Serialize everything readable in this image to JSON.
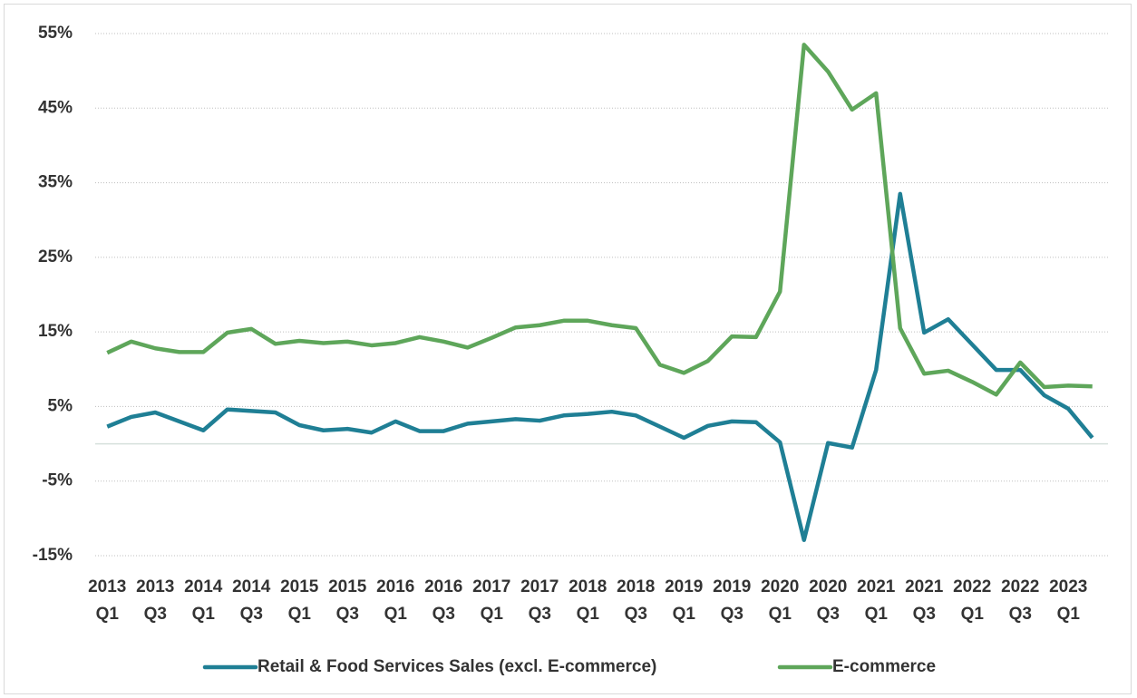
{
  "chart_data": {
    "type": "line",
    "categories": [
      "2013 Q1",
      null,
      "2013 Q3",
      null,
      "2014 Q1",
      null,
      "2014 Q3",
      null,
      "2015 Q1",
      null,
      "2015 Q3",
      null,
      "2016 Q1",
      null,
      "2016 Q3",
      null,
      "2017 Q1",
      null,
      "2017 Q3",
      null,
      "2018 Q1",
      null,
      "2018 Q3",
      null,
      "2019 Q1",
      null,
      "2019 Q3",
      null,
      "2020 Q1",
      null,
      "2020 Q3",
      null,
      "2021 Q1",
      null,
      "2021 Q3",
      null,
      "2022 Q1",
      null,
      "2022 Q3",
      null,
      "2023 Q1",
      null
    ],
    "series": [
      {
        "name": "Retail & Food Services Sales (excl. E-commerce)",
        "color": "#1f7f95",
        "values": [
          2.3,
          3.6,
          4.2,
          3.0,
          1.8,
          4.6,
          4.4,
          4.2,
          2.5,
          1.8,
          2.0,
          1.5,
          3.0,
          1.7,
          1.7,
          2.7,
          3.0,
          3.3,
          3.1,
          3.8,
          4.0,
          4.3,
          3.8,
          2.3,
          0.8,
          2.4,
          3.0,
          2.9,
          0.2,
          -12.9,
          0.1,
          -0.5,
          9.9,
          33.5,
          14.9,
          16.7,
          13.3,
          9.9,
          9.9,
          6.5,
          4.7,
          0.8
        ]
      },
      {
        "name": "E-commerce",
        "color": "#5ea65a",
        "values": [
          12.2,
          13.7,
          12.8,
          12.3,
          12.3,
          14.9,
          15.4,
          13.4,
          13.8,
          13.5,
          13.7,
          13.2,
          13.5,
          14.3,
          13.7,
          12.9,
          14.2,
          15.6,
          15.9,
          16.5,
          16.5,
          15.9,
          15.5,
          10.6,
          9.5,
          11.1,
          14.4,
          14.3,
          20.4,
          53.5,
          49.9,
          44.8,
          47.0,
          15.5,
          9.4,
          9.8,
          8.3,
          6.6,
          10.9,
          7.6,
          7.8,
          7.7
        ]
      }
    ],
    "ylim": [
      -15,
      55
    ],
    "yticks": [
      {
        "value": -15,
        "label": "-15%"
      },
      {
        "value": -5,
        "label": "-5%"
      },
      {
        "value": 5,
        "label": "5%"
      },
      {
        "value": 15,
        "label": "15%"
      },
      {
        "value": 25,
        "label": "25%"
      },
      {
        "value": 35,
        "label": "35%"
      },
      {
        "value": 45,
        "label": "45%"
      },
      {
        "value": 55,
        "label": "55%"
      }
    ],
    "grid": true,
    "legend": "bottom"
  }
}
